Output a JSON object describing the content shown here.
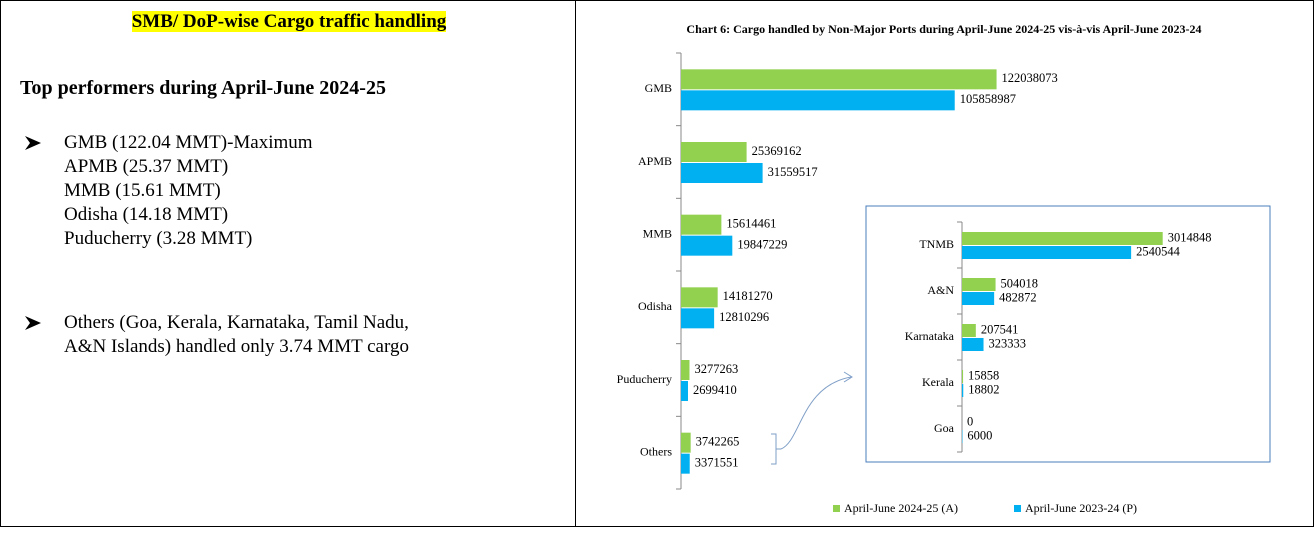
{
  "left": {
    "heading": "SMB/ DoP-wise Cargo traffic handling",
    "subheading": "Top performers during April-June 2024-25",
    "bullets": [
      {
        "lines": [
          "GMB (122.04 MMT)-Maximum",
          "APMB (25.37 MMT)",
          "MMB (15.61 MMT)",
          "Odisha (14.18 MMT)",
          "Puducherry (3.28 MMT)"
        ]
      },
      {
        "lines": [
          "Others (Goa, Kerala, Karnataka, Tamil Nadu,",
          "A&N Islands) handled only 3.74 MMT cargo"
        ]
      }
    ]
  },
  "chart_data": [
    {
      "type": "bar",
      "orientation": "horizontal",
      "title": "Chart 6: Cargo handled by Non-Major Ports during April-June 2024-25 vis-à-vis April-June 2023-24",
      "categories": [
        "GMB",
        "APMB",
        "MMB",
        "Odisha",
        "Puducherry",
        "Others"
      ],
      "series": [
        {
          "name": "April-June 2024-25 (A)",
          "color": "#92d050",
          "values": [
            122038073,
            25369162,
            15614461,
            14181270,
            3277263,
            3742265
          ]
        },
        {
          "name": "April-June 2023-24 (P)",
          "color": "#00b0f0",
          "values": [
            105858987,
            31559517,
            19847229,
            12810296,
            2699410,
            3371551
          ]
        }
      ],
      "xlim": [
        0,
        140000000
      ],
      "legend": "bottom"
    },
    {
      "type": "bar",
      "orientation": "horizontal",
      "categories": [
        "TNMB",
        "A&N",
        "Karnataka",
        "Kerala",
        "Goa"
      ],
      "series": [
        {
          "name": "April-June 2024-25 (A)",
          "color": "#92d050",
          "values": [
            3014848,
            504018,
            207541,
            15858,
            0
          ]
        },
        {
          "name": "April-June 2023-24 (P)",
          "color": "#00b0f0",
          "values": [
            2540544,
            482872,
            323333,
            18802,
            6000
          ]
        }
      ],
      "xlim": [
        0,
        3500000
      ]
    }
  ]
}
